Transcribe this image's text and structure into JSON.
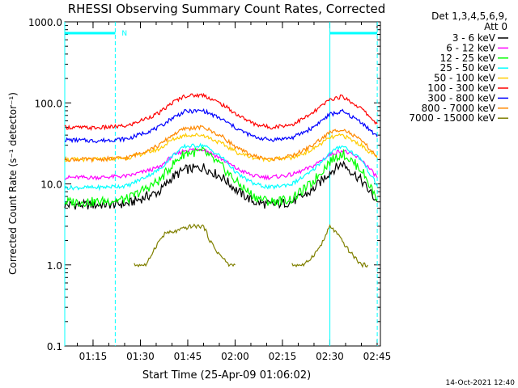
{
  "page": {
    "footer_timestamp": "14-Oct-2021 12:40"
  },
  "chart_data": {
    "type": "line",
    "title": "RHESSI Observing Summary Count Rates, Corrected",
    "xlabel": "Start Time (25-Apr-09 01:06:02)",
    "ylabel": "Corrected Count Rate (s⁻¹ detector⁻¹)",
    "y_scale": "log",
    "ylim": [
      0.1,
      1000
    ],
    "y_ticks": [
      "0.1",
      "1.0",
      "10.0",
      "100.0",
      "1000.0"
    ],
    "xlim": [
      "01:06:02",
      "02:46"
    ],
    "x_ticks": [
      "01:15",
      "01:30",
      "01:45",
      "02:00",
      "02:15",
      "02:30",
      "02:45"
    ],
    "grid": false,
    "legend_position": "outside right",
    "legend_header": [
      "Det 1,3,4,5,6,9,",
      "Att 0"
    ],
    "colors": {
      "axes": "#000000",
      "title": "#000000",
      "marker": "#00ffff"
    },
    "markers": {
      "night_label": "N",
      "vertical_lines_minutes": [
        0,
        16,
        84,
        99
      ],
      "night_bars": [
        [
          0,
          16
        ],
        [
          84,
          99
        ]
      ]
    },
    "series": [
      {
        "name": "3 - 6 keV",
        "color": "#000000",
        "x_minutes": [
          0,
          10,
          20,
          30,
          34,
          38,
          44,
          50,
          55,
          60,
          65,
          72,
          78,
          84,
          88,
          94,
          99
        ],
        "values": [
          5.5,
          5.5,
          5.7,
          8.0,
          12.0,
          15.0,
          16.0,
          12.0,
          8.0,
          6.0,
          5.5,
          6.0,
          8.0,
          14.0,
          18.0,
          11.0,
          6.0
        ]
      },
      {
        "name": "6 - 12 keV",
        "color": "#ff00ff",
        "x_minutes": [
          0,
          10,
          20,
          30,
          34,
          38,
          44,
          50,
          55,
          60,
          65,
          72,
          78,
          84,
          88,
          94,
          99
        ],
        "values": [
          12.0,
          12.0,
          12.5,
          16.0,
          22.0,
          26.0,
          27.0,
          20.0,
          15.0,
          12.5,
          12.0,
          13.0,
          16.0,
          23.0,
          26.0,
          20.0,
          12.0
        ]
      },
      {
        "name": "12 - 25 keV",
        "color": "#00ff00",
        "x_minutes": [
          0,
          10,
          20,
          30,
          34,
          38,
          44,
          50,
          55,
          60,
          65,
          72,
          78,
          84,
          88,
          94,
          99
        ],
        "values": [
          6.0,
          6.0,
          6.5,
          11.0,
          17.0,
          24.0,
          25.0,
          16.0,
          10.0,
          7.0,
          6.0,
          6.5,
          10.0,
          19.0,
          24.0,
          15.0,
          6.5
        ]
      },
      {
        "name": "25 - 50 keV",
        "color": "#00ffff",
        "x_minutes": [
          0,
          10,
          20,
          30,
          34,
          38,
          44,
          50,
          55,
          60,
          65,
          72,
          78,
          84,
          88,
          94,
          99
        ],
        "values": [
          9.0,
          9.0,
          9.5,
          15.0,
          22.0,
          29.0,
          30.0,
          21.0,
          13.0,
          10.0,
          9.0,
          10.0,
          14.0,
          24.0,
          30.0,
          20.0,
          9.5
        ]
      },
      {
        "name": "50 - 100 keV",
        "color": "#ffcc00",
        "x_minutes": [
          0,
          10,
          20,
          30,
          34,
          38,
          44,
          50,
          55,
          60,
          65,
          72,
          78,
          84,
          88,
          94,
          99
        ],
        "values": [
          20.0,
          20.0,
          21.0,
          27.0,
          35.0,
          40.0,
          40.0,
          31.0,
          24.0,
          21.0,
          20.0,
          21.0,
          26.0,
          37.0,
          40.0,
          30.0,
          21.0
        ]
      },
      {
        "name": "100 - 300 keV",
        "color": "#ff0000",
        "x_minutes": [
          0,
          10,
          20,
          30,
          34,
          38,
          44,
          50,
          55,
          60,
          65,
          72,
          78,
          84,
          88,
          94,
          99
        ],
        "values": [
          50.0,
          49.0,
          52.0,
          75.0,
          100.0,
          122.0,
          125.0,
          95.0,
          70.0,
          55.0,
          50.0,
          54.0,
          72.0,
          110.0,
          120.0,
          85.0,
          55.0
        ]
      },
      {
        "name": "300 - 800 keV",
        "color": "#0000ff",
        "x_minutes": [
          0,
          10,
          20,
          30,
          34,
          38,
          44,
          50,
          55,
          60,
          65,
          72,
          78,
          84,
          88,
          94,
          99
        ],
        "values": [
          35.0,
          34.0,
          36.0,
          50.0,
          65.0,
          78.0,
          80.0,
          62.0,
          47.0,
          38.0,
          35.0,
          37.0,
          48.0,
          72.0,
          78.0,
          58.0,
          38.0
        ]
      },
      {
        "name": "800 - 7000 keV",
        "color": "#ff8800",
        "x_minutes": [
          0,
          10,
          20,
          30,
          34,
          38,
          44,
          50,
          55,
          60,
          65,
          72,
          78,
          84,
          88,
          94,
          99
        ],
        "values": [
          20.0,
          20.0,
          21.0,
          30.0,
          40.0,
          48.0,
          50.0,
          38.0,
          27.0,
          22.0,
          20.0,
          22.0,
          29.0,
          43.0,
          48.0,
          34.0,
          22.0
        ]
      },
      {
        "name": "7000 - 15000 keV",
        "color": "#808000",
        "x_minutes": [
          22,
          26,
          28,
          30,
          32,
          34,
          40,
          44,
          46,
          48,
          52,
          54,
          56,
          72,
          76,
          80,
          82,
          84,
          86,
          90,
          94,
          96
        ],
        "values": [
          1.0,
          1.0,
          1.5,
          2.0,
          2.5,
          2.5,
          3.0,
          3.0,
          2.0,
          1.5,
          1.0,
          1.0,
          null,
          1.0,
          1.0,
          1.5,
          2.0,
          3.0,
          2.5,
          1.5,
          1.0,
          1.0
        ]
      }
    ]
  }
}
